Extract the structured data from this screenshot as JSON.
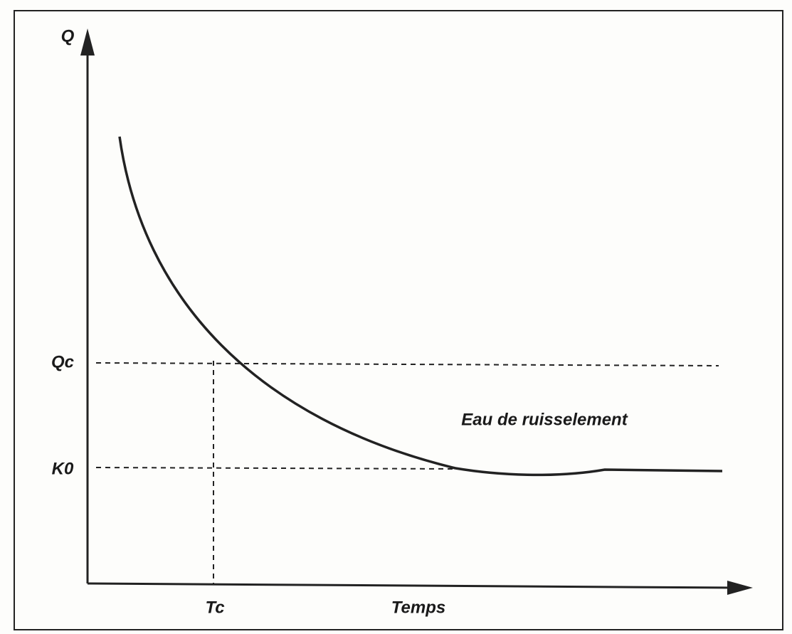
{
  "axes": {
    "y_label": "Q",
    "x_label": "Temps"
  },
  "markers": {
    "qc": "Qc",
    "k0": "K0",
    "tc": "Tc"
  },
  "annotation": "Eau de ruisselement"
}
